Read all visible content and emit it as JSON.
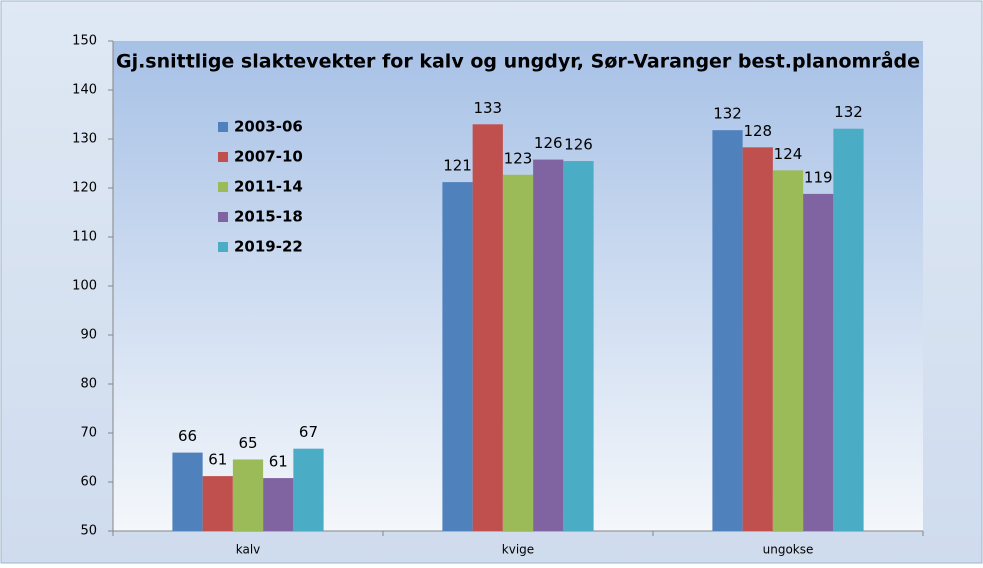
{
  "chart_data": {
    "type": "bar",
    "title": "Gj.snittlige slaktevekter for kalv og ungdyr, Sør-Varanger best.planområde",
    "categories": [
      "kalv",
      "kvige",
      "ungokse"
    ],
    "series": [
      {
        "name": "2003-06",
        "color": "#4f81bd",
        "values": [
          66,
          121.2,
          131.8
        ],
        "value_labels": [
          "66",
          "121",
          "132"
        ]
      },
      {
        "name": "2007-10",
        "color": "#c0504d",
        "values": [
          61.2,
          133,
          128.3
        ],
        "value_labels": [
          "61",
          "133",
          "128"
        ]
      },
      {
        "name": "2011-14",
        "color": "#9bbb59",
        "values": [
          64.6,
          122.7,
          123.6
        ],
        "value_labels": [
          "65",
          "123",
          "124"
        ]
      },
      {
        "name": "2015-18",
        "color": "#8064a2",
        "values": [
          60.8,
          125.8,
          118.8
        ],
        "value_labels": [
          "61",
          "126",
          "119"
        ]
      },
      {
        "name": "2019-22",
        "color": "#4bacc6",
        "values": [
          66.8,
          125.5,
          132.1
        ],
        "value_labels": [
          "67",
          "126",
          "132"
        ]
      }
    ],
    "ylim": [
      50,
      150
    ],
    "yticks": [
      50,
      60,
      70,
      80,
      90,
      100,
      110,
      120,
      130,
      140,
      150
    ],
    "legend": "upper left",
    "grid": false
  }
}
